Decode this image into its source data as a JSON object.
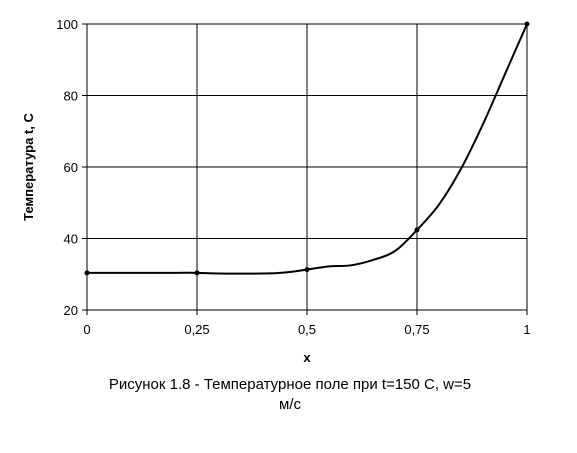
{
  "chart_data": {
    "type": "line",
    "xlabel": "x",
    "ylabel": "Температура t, С",
    "x_ticks": [
      "0",
      "0,25",
      "0,5",
      "0,75",
      "1"
    ],
    "y_ticks": [
      "20",
      "40",
      "60",
      "80",
      "100"
    ],
    "xlim": [
      0,
      1
    ],
    "ylim": [
      20,
      100
    ],
    "grid": true,
    "marker_points": [
      {
        "x": 0,
        "y": 30.4
      },
      {
        "x": 0.25,
        "y": 30.4
      },
      {
        "x": 0.5,
        "y": 31.3
      },
      {
        "x": 0.75,
        "y": 42.4
      },
      {
        "x": 1,
        "y": 100
      }
    ],
    "curve": [
      {
        "x": 0,
        "y": 30.4
      },
      {
        "x": 0.1,
        "y": 30.4
      },
      {
        "x": 0.2,
        "y": 30.4
      },
      {
        "x": 0.25,
        "y": 30.4
      },
      {
        "x": 0.3,
        "y": 30.2
      },
      {
        "x": 0.4,
        "y": 30.2
      },
      {
        "x": 0.45,
        "y": 30.5
      },
      {
        "x": 0.5,
        "y": 31.3
      },
      {
        "x": 0.55,
        "y": 32.2
      },
      {
        "x": 0.6,
        "y": 32.5
      },
      {
        "x": 0.65,
        "y": 34.0
      },
      {
        "x": 0.7,
        "y": 36.5
      },
      {
        "x": 0.75,
        "y": 42.4
      },
      {
        "x": 0.8,
        "y": 49.5
      },
      {
        "x": 0.85,
        "y": 59.5
      },
      {
        "x": 0.9,
        "y": 72.0
      },
      {
        "x": 0.95,
        "y": 86.0
      },
      {
        "x": 1,
        "y": 100
      }
    ]
  },
  "caption": {
    "line1": "Рисунок 1.8 - Температурное поле при t=150 С, w=5",
    "line2": "м/с"
  }
}
